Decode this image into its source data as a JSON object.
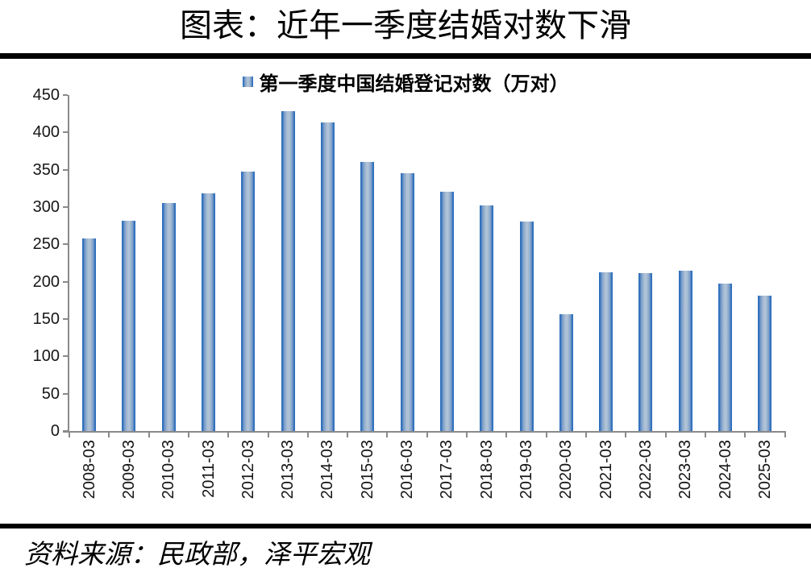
{
  "title": "图表：近年一季度结婚对数下滑",
  "legend": {
    "label": "第一季度中国结婚登记对数（万对）"
  },
  "source_text": "资料来源：民政部，泽平宏观",
  "colors": {
    "bar_edge": "#2E6FBC",
    "bar_light": "#7E9FC9",
    "bar_mid": "#AFC2D6",
    "axis_line": "#8A8A8A",
    "divider": "#000000",
    "tick_label": "#161616"
  },
  "chart_data": {
    "type": "bar",
    "title": "图表：近年一季度结婚对数下滑",
    "legend_entries": [
      "第一季度中国结婚登记对数（万对）"
    ],
    "legend_position": "top",
    "categories": [
      "2008-03",
      "2009-03",
      "2010-03",
      "2011-03",
      "2012-03",
      "2013-03",
      "2014-03",
      "2015-03",
      "2016-03",
      "2017-03",
      "2018-03",
      "2019-03",
      "2020-03",
      "2021-03",
      "2022-03",
      "2023-03",
      "2024-03",
      "2025-03"
    ],
    "values": [
      258,
      282,
      305,
      318,
      347,
      428,
      413,
      360,
      345,
      320,
      302,
      281,
      156,
      213,
      211,
      215,
      197,
      181
    ],
    "xlabel": "",
    "ylabel": "",
    "ylim": [
      0,
      450
    ],
    "ytick_step": 50,
    "grid": false,
    "source": "资料来源：民政部，泽平宏观"
  }
}
